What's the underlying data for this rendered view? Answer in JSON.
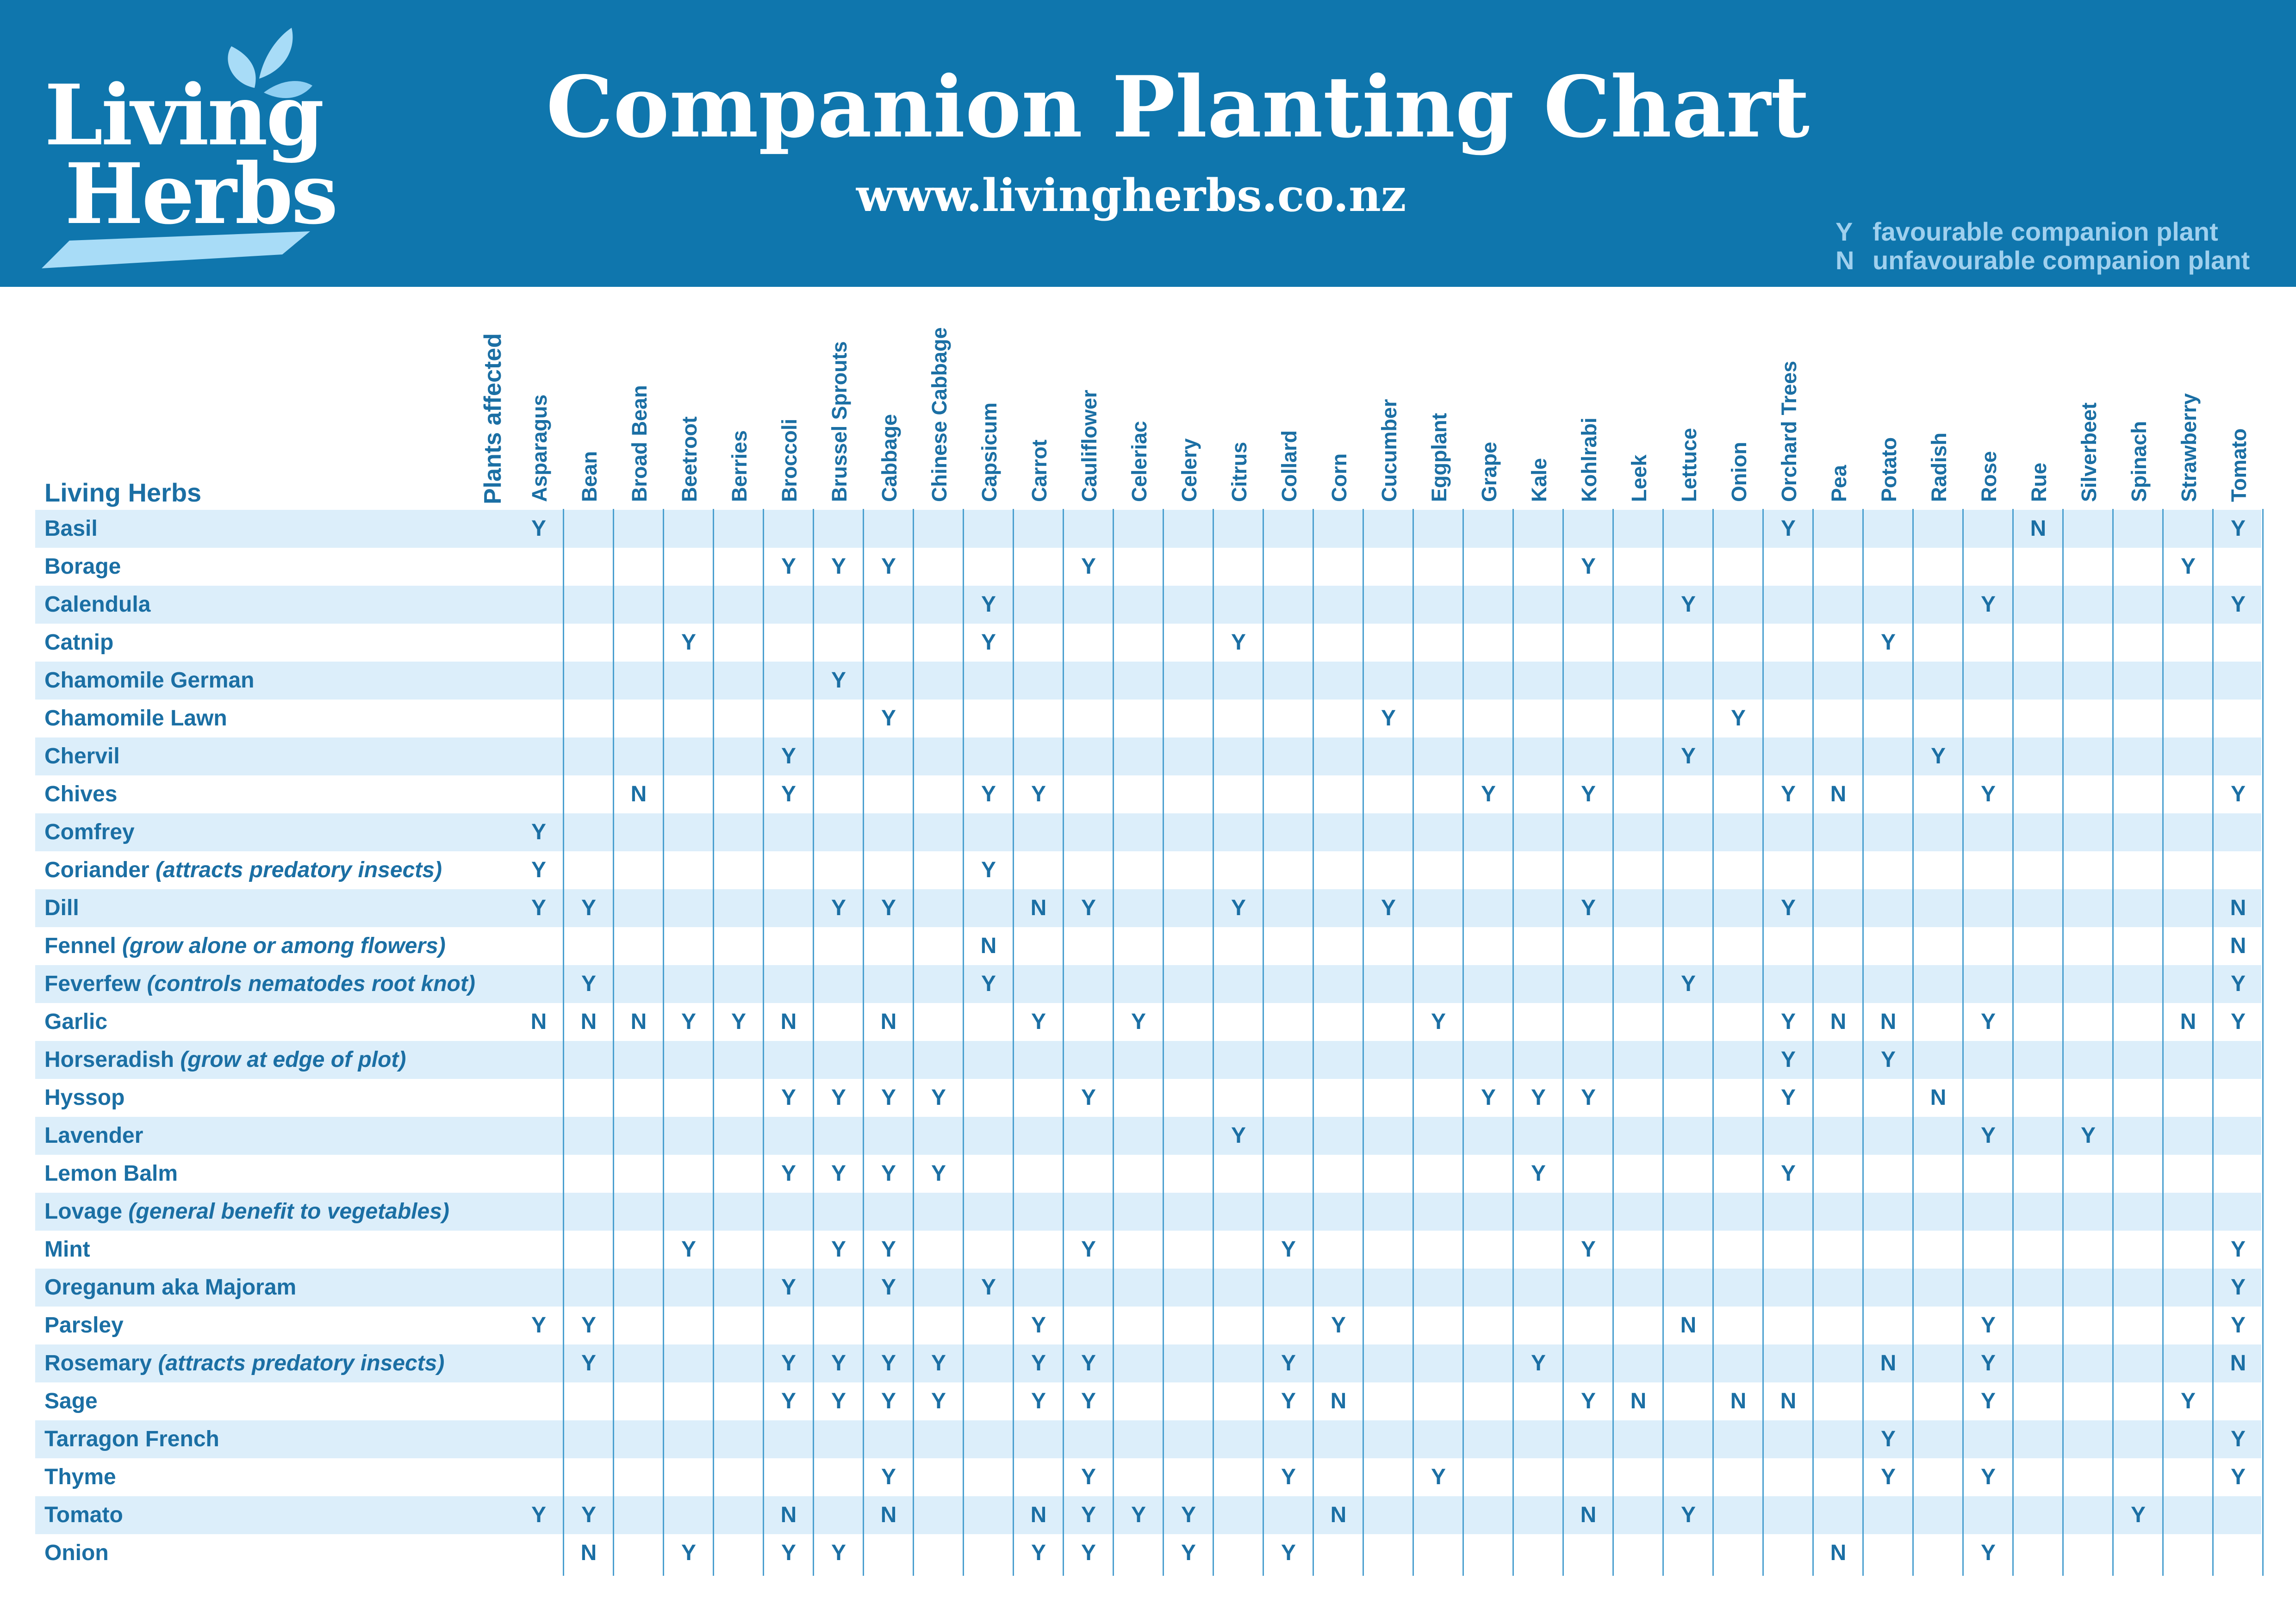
{
  "header": {
    "logo_line1": "Living",
    "logo_line2": "Herbs",
    "title": "Companion Planting Chart",
    "url": "www.livingherbs.co.nz",
    "legend": [
      {
        "key": "Y",
        "text": "favourable companion plant"
      },
      {
        "key": "N",
        "text": "unfavourable companion plant"
      }
    ]
  },
  "colors": {
    "brand": "#0f76ad",
    "text": "#1b6fa4",
    "shade": "#dceefa",
    "line": "#4a9fcf",
    "legend": "#9fd0ee"
  },
  "table": {
    "row_header": "Living Herbs",
    "affected_label": "Plants affected",
    "columns": [
      "Asparagus",
      "Bean",
      "Broad Bean",
      "Beetroot",
      "Berries",
      "Broccoli",
      "Brussel Sprouts",
      "Cabbage",
      "Chinese Cabbage",
      "Capsicum",
      "Carrot",
      "Cauliflower",
      "Celeriac",
      "Celery",
      "Citrus",
      "Collard",
      "Corn",
      "Cucumber",
      "Eggplant",
      "Grape",
      "Kale",
      "Kohlrabi",
      "Leek",
      "Lettuce",
      "Onion",
      "Orchard Trees",
      "Pea",
      "Potato",
      "Radish",
      "Rose",
      "Rue",
      "Silverbeet",
      "Spinach",
      "Strawberry",
      "Tomato"
    ],
    "rows": [
      {
        "name": "Basil",
        "note": "",
        "cells": [
          "Y",
          "",
          "",
          "",
          "",
          "",
          "",
          "",
          "",
          "",
          "",
          "",
          "",
          "",
          "",
          "",
          "",
          "",
          "",
          "",
          "",
          "",
          "",
          "",
          "",
          "Y",
          "",
          "",
          "",
          "",
          "N",
          "",
          "",
          "",
          "Y"
        ]
      },
      {
        "name": "Borage",
        "note": "",
        "cells": [
          "",
          "",
          "",
          "",
          "",
          "Y",
          "Y",
          "Y",
          "",
          "",
          "",
          "Y",
          "",
          "",
          "",
          "",
          "",
          "",
          "",
          "",
          "",
          "Y",
          "",
          "",
          "",
          "",
          "",
          "",
          "",
          "",
          "",
          "",
          "",
          "Y",
          ""
        ]
      },
      {
        "name": "Calendula",
        "note": "",
        "cells": [
          "",
          "",
          "",
          "",
          "",
          "",
          "",
          "",
          "",
          "Y",
          "",
          "",
          "",
          "",
          "",
          "",
          "",
          "",
          "",
          "",
          "",
          "",
          "",
          "Y",
          "",
          "",
          "",
          "",
          "",
          "Y",
          "",
          "",
          "",
          "",
          "Y"
        ]
      },
      {
        "name": "Catnip",
        "note": "",
        "cells": [
          "",
          "",
          "",
          "Y",
          "",
          "",
          "",
          "",
          "",
          "Y",
          "",
          "",
          "",
          "",
          "Y",
          "",
          "",
          "",
          "",
          "",
          "",
          "",
          "",
          "",
          "",
          "",
          "",
          "Y",
          "",
          "",
          "",
          "",
          "",
          "",
          ""
        ]
      },
      {
        "name": "Chamomile German",
        "note": "",
        "cells": [
          "",
          "",
          "",
          "",
          "",
          "",
          "Y",
          "",
          "",
          "",
          "",
          "",
          "",
          "",
          "",
          "",
          "",
          "",
          "",
          "",
          "",
          "",
          "",
          "",
          "",
          "",
          "",
          "",
          "",
          "",
          "",
          "",
          "",
          "",
          ""
        ]
      },
      {
        "name": "Chamomile Lawn",
        "note": "",
        "cells": [
          "",
          "",
          "",
          "",
          "",
          "",
          "",
          "Y",
          "",
          "",
          "",
          "",
          "",
          "",
          "",
          "",
          "",
          "Y",
          "",
          "",
          "",
          "",
          "",
          "",
          "Y",
          "",
          "",
          "",
          "",
          "",
          "",
          "",
          "",
          "",
          ""
        ]
      },
      {
        "name": "Chervil",
        "note": "",
        "cells": [
          "",
          "",
          "",
          "",
          "",
          "Y",
          "",
          "",
          "",
          "",
          "",
          "",
          "",
          "",
          "",
          "",
          "",
          "",
          "",
          "",
          "",
          "",
          "",
          "Y",
          "",
          "",
          "",
          "",
          "Y",
          "",
          "",
          "",
          "",
          "",
          ""
        ]
      },
      {
        "name": "Chives",
        "note": "",
        "cells": [
          "",
          "",
          "N",
          "",
          "",
          "Y",
          "",
          "",
          "",
          "Y",
          "Y",
          "",
          "",
          "",
          "",
          "",
          "",
          "",
          "",
          "Y",
          "",
          "Y",
          "",
          "",
          "",
          "Y",
          "N",
          "",
          "",
          "Y",
          "",
          "",
          "",
          "",
          "Y"
        ]
      },
      {
        "name": "Comfrey",
        "note": "",
        "cells": [
          "Y",
          "",
          "",
          "",
          "",
          "",
          "",
          "",
          "",
          "",
          "",
          "",
          "",
          "",
          "",
          "",
          "",
          "",
          "",
          "",
          "",
          "",
          "",
          "",
          "",
          "",
          "",
          "",
          "",
          "",
          "",
          "",
          "",
          "",
          ""
        ]
      },
      {
        "name": "Coriander",
        "note": "(attracts predatory insects)",
        "cells": [
          "Y",
          "",
          "",
          "",
          "",
          "",
          "",
          "",
          "",
          "Y",
          "",
          "",
          "",
          "",
          "",
          "",
          "",
          "",
          "",
          "",
          "",
          "",
          "",
          "",
          "",
          "",
          "",
          "",
          "",
          "",
          "",
          "",
          "",
          "",
          ""
        ]
      },
      {
        "name": "Dill",
        "note": "",
        "cells": [
          "Y",
          "Y",
          "",
          "",
          "",
          "",
          "Y",
          "Y",
          "",
          "",
          "N",
          "Y",
          "",
          "",
          "Y",
          "",
          "",
          "Y",
          "",
          "",
          "",
          "Y",
          "",
          "",
          "",
          "Y",
          "",
          "",
          "",
          "",
          "",
          "",
          "",
          "",
          "N"
        ]
      },
      {
        "name": "Fennel",
        "note": "(grow alone or among flowers)",
        "cells": [
          "",
          "",
          "",
          "",
          "",
          "",
          "",
          "",
          "",
          "N",
          "",
          "",
          "",
          "",
          "",
          "",
          "",
          "",
          "",
          "",
          "",
          "",
          "",
          "",
          "",
          "",
          "",
          "",
          "",
          "",
          "",
          "",
          "",
          "",
          "N"
        ]
      },
      {
        "name": "Feverfew",
        "note": "(controls nematodes root knot)",
        "cells": [
          "",
          "Y",
          "",
          "",
          "",
          "",
          "",
          "",
          "",
          "Y",
          "",
          "",
          "",
          "",
          "",
          "",
          "",
          "",
          "",
          "",
          "",
          "",
          "",
          "Y",
          "",
          "",
          "",
          "",
          "",
          "",
          "",
          "",
          "",
          "",
          "Y"
        ]
      },
      {
        "name": "Garlic",
        "note": "",
        "cells": [
          "N",
          "N",
          "N",
          "Y",
          "Y",
          "N",
          "",
          "N",
          "",
          "",
          "Y",
          "",
          "Y",
          "",
          "",
          "",
          "",
          "",
          "Y",
          "",
          "",
          "",
          "",
          "",
          "",
          "Y",
          "N",
          "N",
          "",
          "Y",
          "",
          "",
          "",
          "N",
          "Y"
        ]
      },
      {
        "name": "Horseradish",
        "note": "(grow at edge of plot)",
        "cells": [
          "",
          "",
          "",
          "",
          "",
          "",
          "",
          "",
          "",
          "",
          "",
          "",
          "",
          "",
          "",
          "",
          "",
          "",
          "",
          "",
          "",
          "",
          "",
          "",
          "",
          "Y",
          "",
          "Y",
          "",
          "",
          "",
          "",
          "",
          "",
          ""
        ]
      },
      {
        "name": "Hyssop",
        "note": "",
        "cells": [
          "",
          "",
          "",
          "",
          "",
          "Y",
          "Y",
          "Y",
          "Y",
          "",
          "",
          "Y",
          "",
          "",
          "",
          "",
          "",
          "",
          "",
          "Y",
          "Y",
          "Y",
          "",
          "",
          "",
          "Y",
          "",
          "",
          "N",
          "",
          "",
          "",
          "",
          "",
          ""
        ]
      },
      {
        "name": "Lavender",
        "note": "",
        "cells": [
          "",
          "",
          "",
          "",
          "",
          "",
          "",
          "",
          "",
          "",
          "",
          "",
          "",
          "",
          "Y",
          "",
          "",
          "",
          "",
          "",
          "",
          "",
          "",
          "",
          "",
          "",
          "",
          "",
          "",
          "Y",
          "",
          "Y",
          "",
          "",
          ""
        ]
      },
      {
        "name": "Lemon Balm",
        "note": "",
        "cells": [
          "",
          "",
          "",
          "",
          "",
          "Y",
          "Y",
          "Y",
          "Y",
          "",
          "",
          "",
          "",
          "",
          "",
          "",
          "",
          "",
          "",
          "",
          "Y",
          "",
          "",
          "",
          "",
          "Y",
          "",
          "",
          "",
          "",
          "",
          "",
          "",
          "",
          ""
        ]
      },
      {
        "name": "Lovage",
        "note": "(general benefit to vegetables)",
        "cells": [
          "",
          "",
          "",
          "",
          "",
          "",
          "",
          "",
          "",
          "",
          "",
          "",
          "",
          "",
          "",
          "",
          "",
          "",
          "",
          "",
          "",
          "",
          "",
          "",
          "",
          "",
          "",
          "",
          "",
          "",
          "",
          "",
          "",
          "",
          ""
        ]
      },
      {
        "name": "Mint",
        "note": "",
        "cells": [
          "",
          "",
          "",
          "Y",
          "",
          "",
          "Y",
          "Y",
          "",
          "",
          "",
          "Y",
          "",
          "",
          "",
          "Y",
          "",
          "",
          "",
          "",
          "",
          "Y",
          "",
          "",
          "",
          "",
          "",
          "",
          "",
          "",
          "",
          "",
          "",
          "",
          "Y"
        ]
      },
      {
        "name": "Oreganum aka Majoram",
        "note": "",
        "cells": [
          "",
          "",
          "",
          "",
          "",
          "Y",
          "",
          "Y",
          "",
          "Y",
          "",
          "",
          "",
          "",
          "",
          "",
          "",
          "",
          "",
          "",
          "",
          "",
          "",
          "",
          "",
          "",
          "",
          "",
          "",
          "",
          "",
          "",
          "",
          "",
          "Y"
        ]
      },
      {
        "name": "Parsley",
        "note": "",
        "cells": [
          "Y",
          "Y",
          "",
          "",
          "",
          "",
          "",
          "",
          "",
          "",
          "Y",
          "",
          "",
          "",
          "",
          "",
          "Y",
          "",
          "",
          "",
          "",
          "",
          "",
          "N",
          "",
          "",
          "",
          "",
          "",
          "Y",
          "",
          "",
          "",
          "",
          "Y"
        ]
      },
      {
        "name": "Rosemary",
        "note": "(attracts predatory insects)",
        "cells": [
          "",
          "Y",
          "",
          "",
          "",
          "Y",
          "Y",
          "Y",
          "Y",
          "",
          "Y",
          "Y",
          "",
          "",
          "",
          "Y",
          "",
          "",
          "",
          "",
          "Y",
          "",
          "",
          "",
          "",
          "",
          "",
          "N",
          "",
          "Y",
          "",
          "",
          "",
          "",
          "N"
        ]
      },
      {
        "name": "Sage",
        "note": "",
        "cells": [
          "",
          "",
          "",
          "",
          "",
          "Y",
          "Y",
          "Y",
          "Y",
          "",
          "Y",
          "Y",
          "",
          "",
          "",
          "Y",
          "N",
          "",
          "",
          "",
          "",
          "Y",
          "N",
          "",
          "N",
          "N",
          "",
          "",
          "",
          "Y",
          "",
          "",
          "",
          "Y",
          ""
        ]
      },
      {
        "name": "Tarragon French",
        "note": "",
        "cells": [
          "",
          "",
          "",
          "",
          "",
          "",
          "",
          "",
          "",
          "",
          "",
          "",
          "",
          "",
          "",
          "",
          "",
          "",
          "",
          "",
          "",
          "",
          "",
          "",
          "",
          "",
          "",
          "Y",
          "",
          "",
          "",
          "",
          "",
          "",
          "Y"
        ]
      },
      {
        "name": "Thyme",
        "note": "",
        "cells": [
          "",
          "",
          "",
          "",
          "",
          "",
          "",
          "Y",
          "",
          "",
          "",
          "Y",
          "",
          "",
          "",
          "Y",
          "",
          "",
          "Y",
          "",
          "",
          "",
          "",
          "",
          "",
          "",
          "",
          "Y",
          "",
          "Y",
          "",
          "",
          "",
          "",
          "Y"
        ]
      },
      {
        "name": "Tomato",
        "note": "",
        "cells": [
          "Y",
          "Y",
          "",
          "",
          "",
          "N",
          "",
          "N",
          "",
          "",
          "N",
          "Y",
          "Y",
          "Y",
          "",
          "",
          "N",
          "",
          "",
          "",
          "",
          "N",
          "",
          "Y",
          "",
          "",
          "",
          "",
          "",
          "",
          "",
          "",
          "Y",
          "",
          ""
        ]
      },
      {
        "name": "Onion",
        "note": "",
        "cells": [
          "",
          "N",
          "",
          "Y",
          "",
          "Y",
          "Y",
          "",
          "",
          "",
          "Y",
          "Y",
          "",
          "Y",
          "",
          "Y",
          "",
          "",
          "",
          "",
          "",
          "",
          "",
          "",
          "",
          "",
          "N",
          "",
          "",
          "Y",
          "",
          "",
          "",
          "",
          ""
        ]
      }
    ]
  }
}
